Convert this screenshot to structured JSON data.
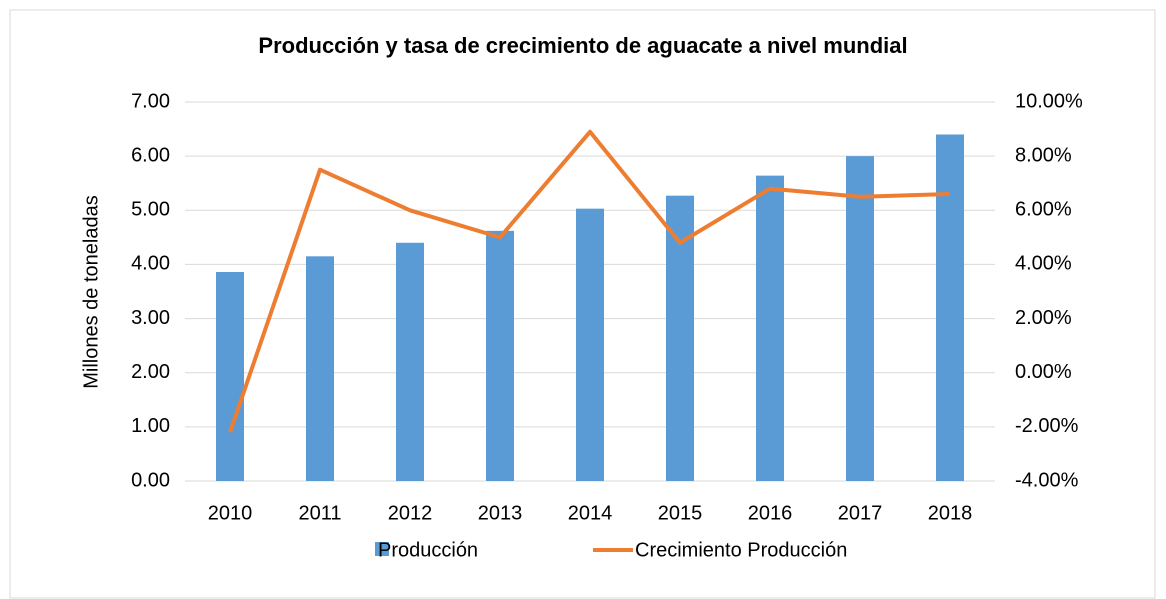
{
  "chart_data": {
    "type": "bar_line",
    "title": "Producción y tasa de crecimiento de aguacate a nivel mundial",
    "y_label": "Millones de toneladas",
    "categories": [
      "2010",
      "2011",
      "2012",
      "2013",
      "2014",
      "2015",
      "2016",
      "2017",
      "2018"
    ],
    "series": [
      {
        "name": "Producción",
        "type": "bar",
        "color": "#5b9bd5",
        "values": [
          3.86,
          4.15,
          4.4,
          4.62,
          5.03,
          5.27,
          5.64,
          6.0,
          6.4
        ]
      },
      {
        "name": "Crecimiento Producción",
        "type": "line",
        "axis": "y2",
        "color": "#ed7d31",
        "values": [
          -2.2,
          7.5,
          6.0,
          5.0,
          8.9,
          4.8,
          6.8,
          6.5,
          6.6
        ]
      }
    ],
    "ylim": [
      0,
      7
    ],
    "yticks": [
      {
        "value": 0,
        "label": "0.00"
      },
      {
        "value": 1,
        "label": "1.00"
      },
      {
        "value": 2,
        "label": "2.00"
      },
      {
        "value": 3,
        "label": "3.00"
      },
      {
        "value": 4,
        "label": "4.00"
      },
      {
        "value": 5,
        "label": "5.00"
      },
      {
        "value": 6,
        "label": "6.00"
      },
      {
        "value": 7,
        "label": "7.00"
      }
    ],
    "y2lim": [
      -4,
      10
    ],
    "y2ticks": [
      {
        "value": -4,
        "label": "-4.00%"
      },
      {
        "value": -2,
        "label": "-2.00%"
      },
      {
        "value": 0,
        "label": "0.00%"
      },
      {
        "value": 2,
        "label": "2.00%"
      },
      {
        "value": 4,
        "label": "4.00%"
      },
      {
        "value": 6,
        "label": "6.00%"
      },
      {
        "value": 8,
        "label": "8.00%"
      },
      {
        "value": 10,
        "label": "10.00%"
      }
    ],
    "grid": true,
    "legend": "bottom"
  }
}
